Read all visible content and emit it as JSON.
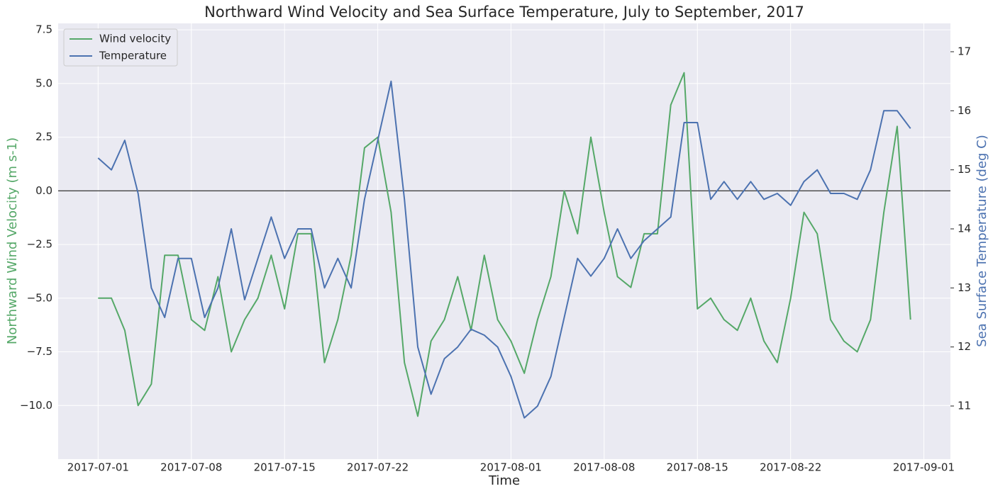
{
  "chart_data": {
    "type": "line",
    "title": "Northward Wind Velocity and Sea Surface Temperature, July to September, 2017",
    "xlabel": "Time",
    "ylabel": "Northward Wind Velocity (m s-1)",
    "y2label": "Sea Surface Temperature (deg C)",
    "ylabel_color": "#55a868",
    "y2label_color": "#4c72b0",
    "x": [
      "2017-07-01",
      "2017-07-02",
      "2017-07-03",
      "2017-07-04",
      "2017-07-05",
      "2017-07-06",
      "2017-07-07",
      "2017-07-08",
      "2017-07-09",
      "2017-07-10",
      "2017-07-11",
      "2017-07-12",
      "2017-07-13",
      "2017-07-14",
      "2017-07-15",
      "2017-07-16",
      "2017-07-17",
      "2017-07-18",
      "2017-07-19",
      "2017-07-20",
      "2017-07-21",
      "2017-07-22",
      "2017-07-23",
      "2017-07-24",
      "2017-07-25",
      "2017-07-26",
      "2017-07-27",
      "2017-07-28",
      "2017-07-29",
      "2017-07-30",
      "2017-07-31",
      "2017-08-01",
      "2017-08-02",
      "2017-08-03",
      "2017-08-04",
      "2017-08-05",
      "2017-08-06",
      "2017-08-07",
      "2017-08-08",
      "2017-08-09",
      "2017-08-10",
      "2017-08-11",
      "2017-08-12",
      "2017-08-13",
      "2017-08-14",
      "2017-08-15",
      "2017-08-16",
      "2017-08-17",
      "2017-08-18",
      "2017-08-19",
      "2017-08-20",
      "2017-08-21",
      "2017-08-22",
      "2017-08-23",
      "2017-08-24",
      "2017-08-25",
      "2017-08-26",
      "2017-08-27",
      "2017-08-28",
      "2017-08-29",
      "2017-08-30",
      "2017-08-31"
    ],
    "series": [
      {
        "name": "Wind velocity",
        "color": "#55a868",
        "axis": "y",
        "values": [
          -5,
          -5,
          -6.5,
          -10,
          -9,
          -3,
          -3,
          -6,
          -6.5,
          -4,
          -7.5,
          -6,
          -5,
          -3,
          -5.5,
          -2,
          -2,
          -8,
          -6,
          -3,
          2,
          2.5,
          -1,
          -8,
          -10.5,
          -7,
          -6,
          -4,
          -6.5,
          -3,
          -6,
          -7,
          -8.5,
          -6,
          -4,
          0,
          -2,
          2.5,
          -1,
          -4,
          -4.5,
          -2,
          -2,
          4,
          5.5,
          -5.5,
          -5,
          -6,
          -6.5,
          -5,
          -7,
          -8,
          -5,
          -1,
          -2,
          -6,
          -7,
          -7.5,
          -6,
          -1,
          3,
          -6
        ]
      },
      {
        "name": "Temperature",
        "color": "#4c72b0",
        "axis": "y2",
        "values": [
          15.2,
          15.0,
          15.5,
          14.6,
          13.0,
          12.5,
          13.5,
          13.5,
          12.5,
          13.0,
          14.0,
          12.8,
          13.5,
          14.2,
          13.5,
          14.0,
          14.0,
          13.0,
          13.5,
          13.0,
          14.5,
          15.5,
          16.5,
          14.5,
          12.0,
          11.2,
          11.8,
          12.0,
          12.3,
          12.2,
          12.0,
          11.5,
          10.8,
          11.0,
          11.5,
          12.5,
          13.5,
          13.2,
          13.5,
          14.0,
          13.5,
          13.8,
          14.0,
          14.2,
          15.8,
          15.8,
          14.5,
          14.8,
          14.5,
          14.8,
          14.5,
          14.6,
          14.4,
          14.8,
          15.0,
          14.6,
          14.6,
          14.5,
          15.0,
          16.0,
          16.0,
          15.7
        ]
      }
    ],
    "xlim": [
      "2017-06-28",
      "2017-09-03"
    ],
    "xticks": [
      "2017-07-01",
      "2017-07-08",
      "2017-07-15",
      "2017-07-22",
      "2017-08-01",
      "2017-08-08",
      "2017-08-15",
      "2017-08-22",
      "2017-09-01"
    ],
    "ylim": [
      -12.5,
      7.8
    ],
    "yticks": [
      {
        "value": -10,
        "label": "−10.0"
      },
      {
        "value": -7.5,
        "label": "−7.5"
      },
      {
        "value": -5,
        "label": "−5.0"
      },
      {
        "value": -2.5,
        "label": "−2.5"
      },
      {
        "value": 0,
        "label": "0.0"
      },
      {
        "value": 2.5,
        "label": "2.5"
      },
      {
        "value": 5,
        "label": "5.0"
      },
      {
        "value": 7.5,
        "label": "7.5"
      }
    ],
    "y2lim": [
      10.1,
      17.48
    ],
    "y2ticks": [
      11,
      12,
      13,
      14,
      15,
      16,
      17
    ],
    "hline": 0,
    "grid": true,
    "legend": "upper-left"
  }
}
